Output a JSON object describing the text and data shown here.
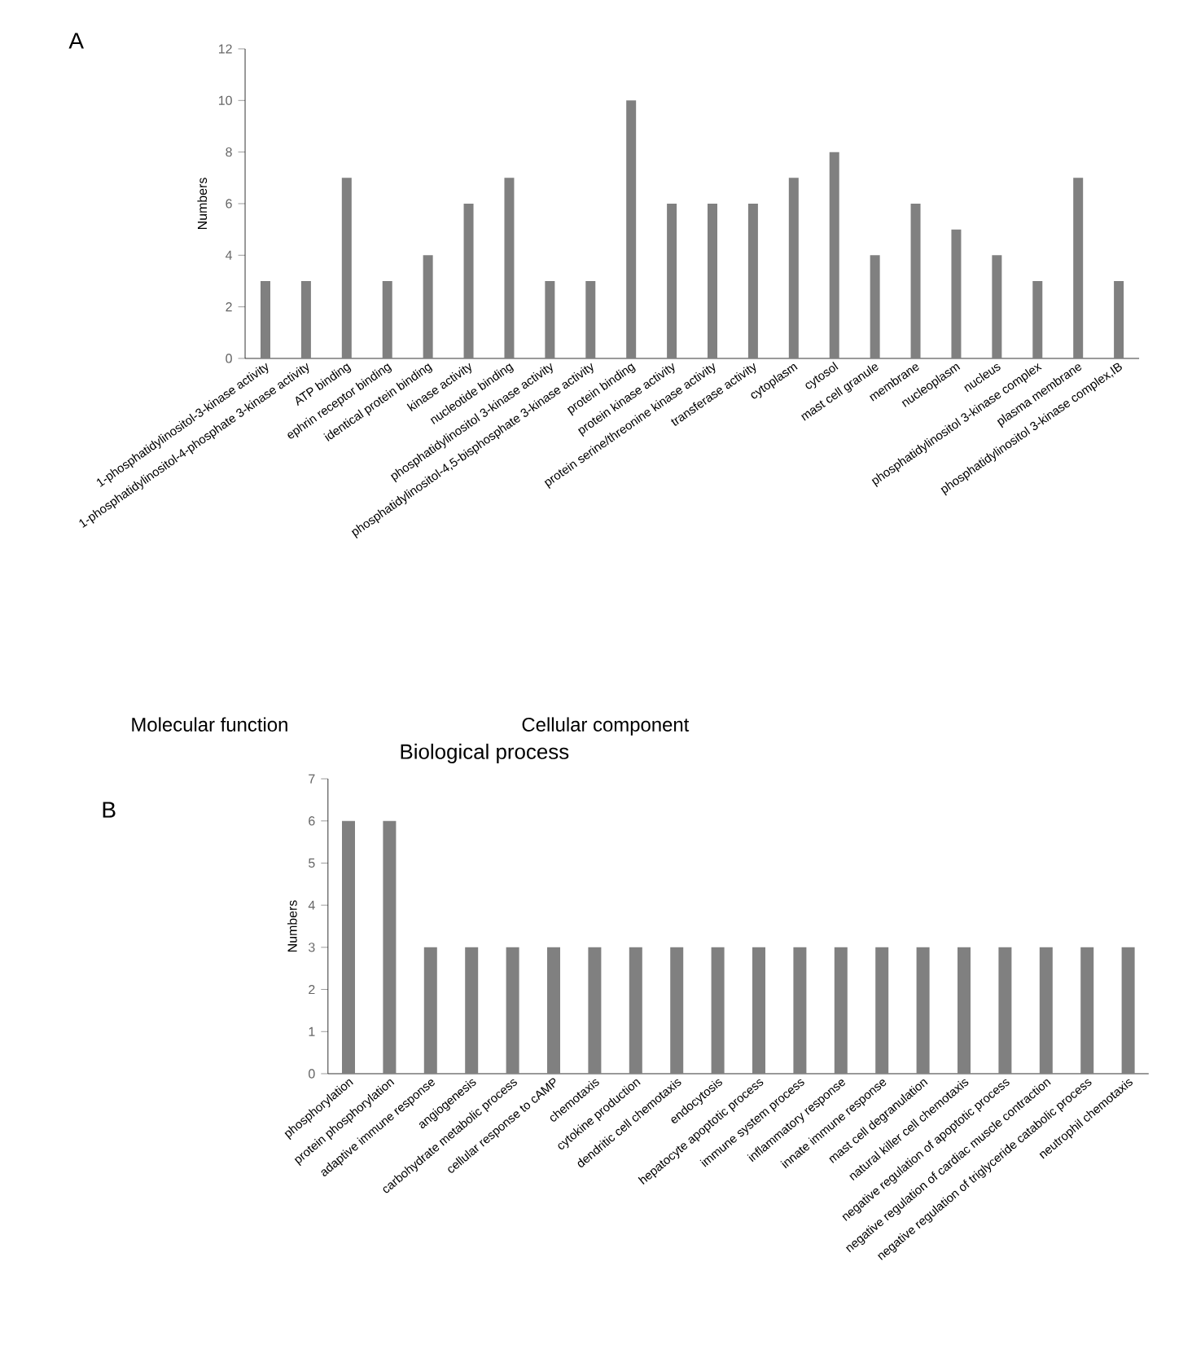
{
  "chart_data": [
    {
      "type": "bar",
      "ylabel": "Numbers",
      "color": "#808080",
      "ylim": [
        0,
        12
      ],
      "yticks": [
        0,
        2,
        4,
        6,
        8,
        10,
        12
      ],
      "categories": [
        "1-phosphatidylinositol-3-kinase activity",
        "1-phosphatidylinositol-4-phosphate 3-kinase activity",
        "ATP binding",
        "ephrin receptor binding",
        "identical protein binding",
        "kinase activity",
        "nucleotide binding",
        "phosphatidylinositol 3-kinase activity",
        "phosphatidylinositol-4,5-bisphosphate 3-kinase activity",
        "protein binding",
        "protein kinase activity",
        "protein serine/threonine kinase activity",
        "transferase activity",
        "cytoplasm",
        "cytosol",
        "mast cell granule",
        "membrane",
        "nucleoplasm",
        "nucleus",
        "phosphatidylinositol 3-kinase complex",
        "plasma membrane",
        "phosphatidylinositol 3-kinase complex,IB"
      ],
      "values": [
        3,
        3,
        7,
        3,
        4,
        6,
        7,
        3,
        3,
        10,
        6,
        6,
        6,
        7,
        8,
        4,
        6,
        5,
        4,
        3,
        7,
        3
      ],
      "annotations": [
        "A",
        "Molecular function",
        "Cellular component"
      ]
    },
    {
      "type": "bar",
      "title": "Biological process",
      "ylabel": "Numbers",
      "color": "#808080",
      "ylim": [
        0,
        7
      ],
      "yticks": [
        0,
        1,
        2,
        3,
        4,
        5,
        6,
        7
      ],
      "categories": [
        "phosphorylation",
        "protein phosphorylation",
        "adaptive immune response",
        "angiogenesis",
        "carbohydrate metabolic process",
        "cellular response to cAMP",
        "chemotaxis",
        "cytokine production",
        "dendritic cell chemotaxis",
        "endocytosis",
        "hepatocyte apoptotic process",
        "immune system process",
        "inflammatory response",
        "innate immune response",
        "mast cell degranulation",
        "natural killer cell chemotaxis",
        "negative regulation of apoptotic process",
        "negative regulation of cardiac muscle contraction",
        "negative regulation of triglyceride catabolic process",
        "neutrophil chemotaxis"
      ],
      "values": [
        6,
        6,
        3,
        3,
        3,
        3,
        3,
        3,
        3,
        3,
        3,
        3,
        3,
        3,
        3,
        3,
        3,
        3,
        3,
        3
      ],
      "annotations": [
        "B"
      ]
    }
  ]
}
